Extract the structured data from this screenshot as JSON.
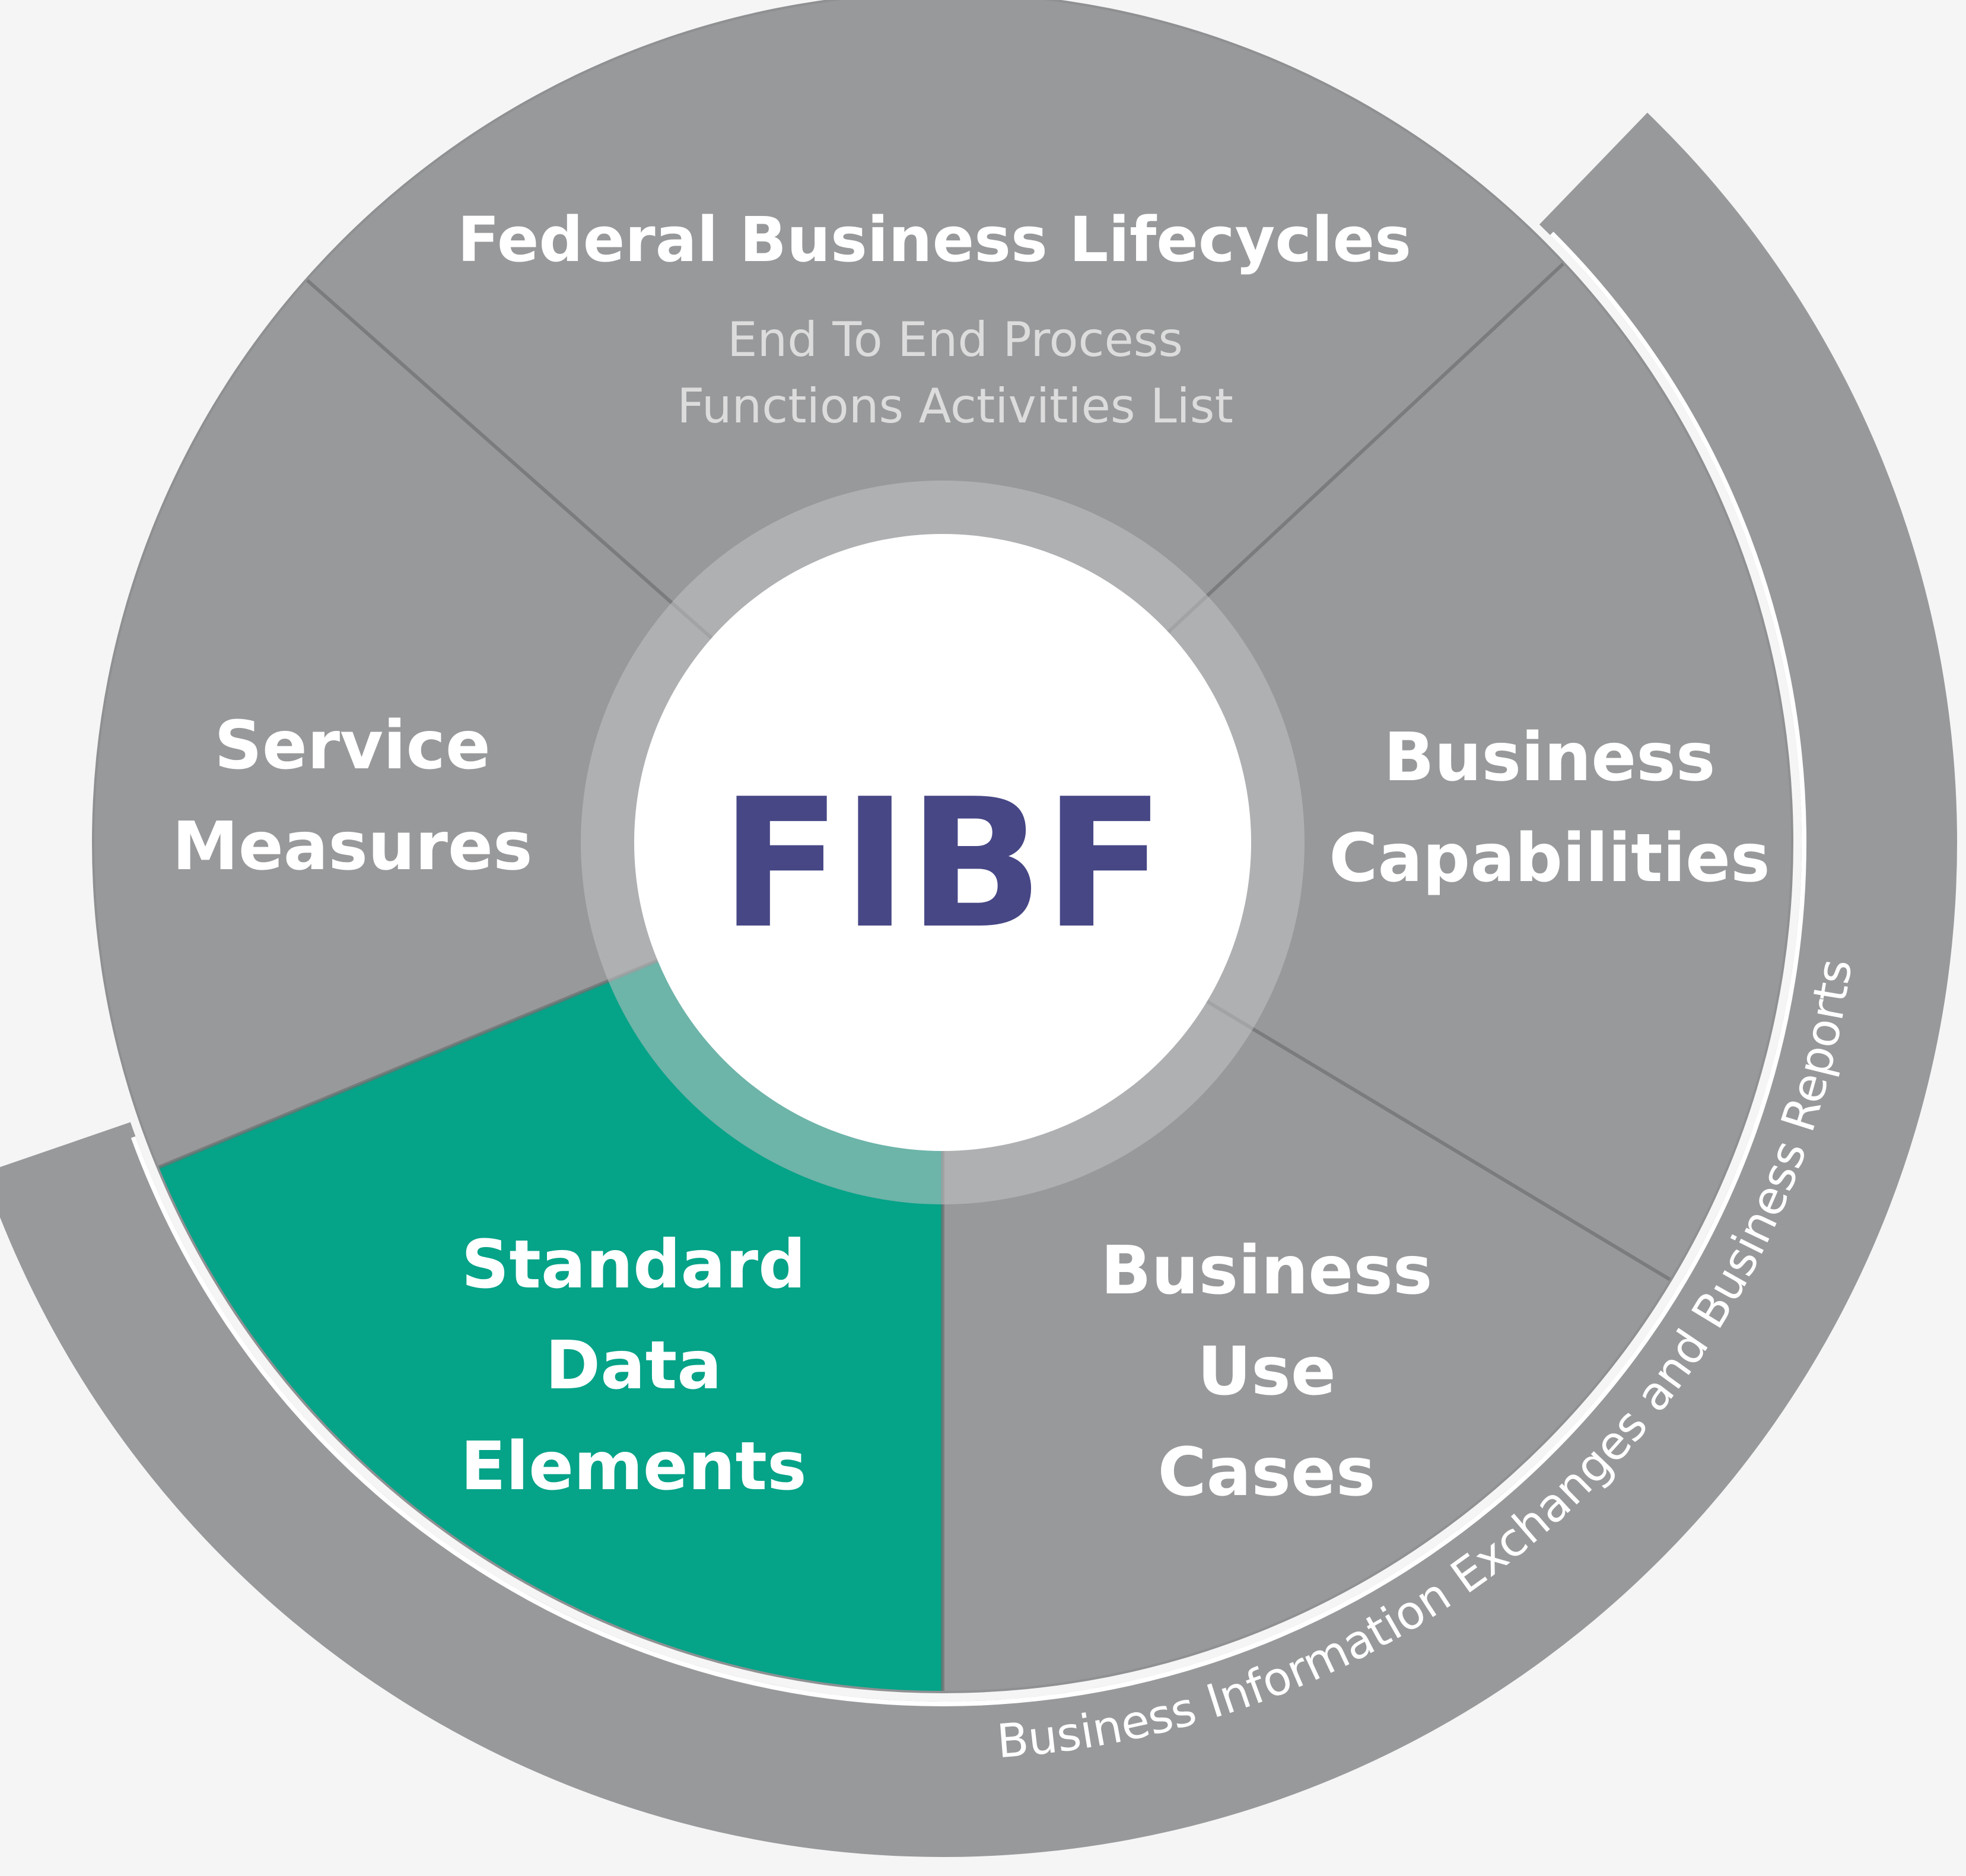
{
  "colors": {
    "background": "#f5f5f5",
    "segment_gray": "#98999b",
    "segment_highlight": "#05a388",
    "divider": "#6e6f71",
    "center_fill": "#ffffff",
    "center_ring": "#c2c3c5",
    "center_text": "#474786",
    "outer_arc": "#98999b"
  },
  "center": {
    "label": "FIBF"
  },
  "segments": {
    "lifecycles": {
      "title": "Federal Business Lifecycles",
      "sub1": "End To End Process",
      "sub2": "Functions Activities List"
    },
    "capabilities": {
      "line1": "Business",
      "line2": "Capabilities"
    },
    "use_cases": {
      "line1": "Business",
      "line2": "Use",
      "line3": "Cases"
    },
    "data_elements": {
      "line1": "Standard",
      "line2": "Data",
      "line3": "Elements",
      "highlighted": true
    },
    "service_measures": {
      "line1": "Service",
      "line2": "Measures"
    }
  },
  "outer_arc": {
    "label": "Business Information Exchanges and Business Reports"
  }
}
